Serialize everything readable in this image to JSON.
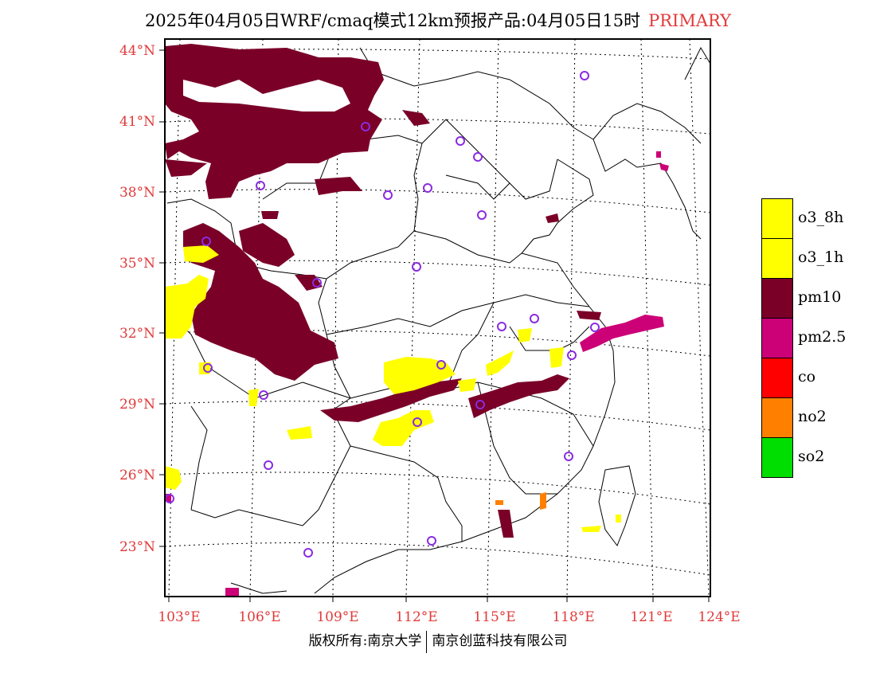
{
  "title": {
    "text": "2025年04月05日WRF/cmaq模式12km预报产品:04月05日15时",
    "tag": "PRIMARY"
  },
  "map": {
    "lat_labels": [
      "44°N",
      "41°N",
      "38°N",
      "35°N",
      "32°N",
      "29°N",
      "26°N",
      "23°N"
    ],
    "lon_labels": [
      "103°E",
      "106°E",
      "109°E",
      "112°E",
      "115°E",
      "118°E",
      "121°E",
      "124°E"
    ],
    "colors": {
      "label": "#e03a3a",
      "o3_8h": "#ffff00",
      "o3_1h": "#ffff00",
      "pm10": "#7a0028",
      "pm2_5": "#cc0077",
      "co": "#ff0000",
      "no2": "#ff8000",
      "so2": "#00dd00",
      "station": "#8a2be2"
    }
  },
  "legend": [
    {
      "label": "o3_8h",
      "color": "#ffff00"
    },
    {
      "label": "o3_1h",
      "color": "#ffff00"
    },
    {
      "label": "pm10",
      "color": "#7a0028"
    },
    {
      "label": "pm2.5",
      "color": "#cc0077"
    },
    {
      "label": "co",
      "color": "#ff0000"
    },
    {
      "label": "no2",
      "color": "#ff8000"
    },
    {
      "label": "so2",
      "color": "#00dd00"
    }
  ],
  "footer": {
    "left": "版权所有:南京大学",
    "right": "南京创蓝科技有限公司"
  }
}
